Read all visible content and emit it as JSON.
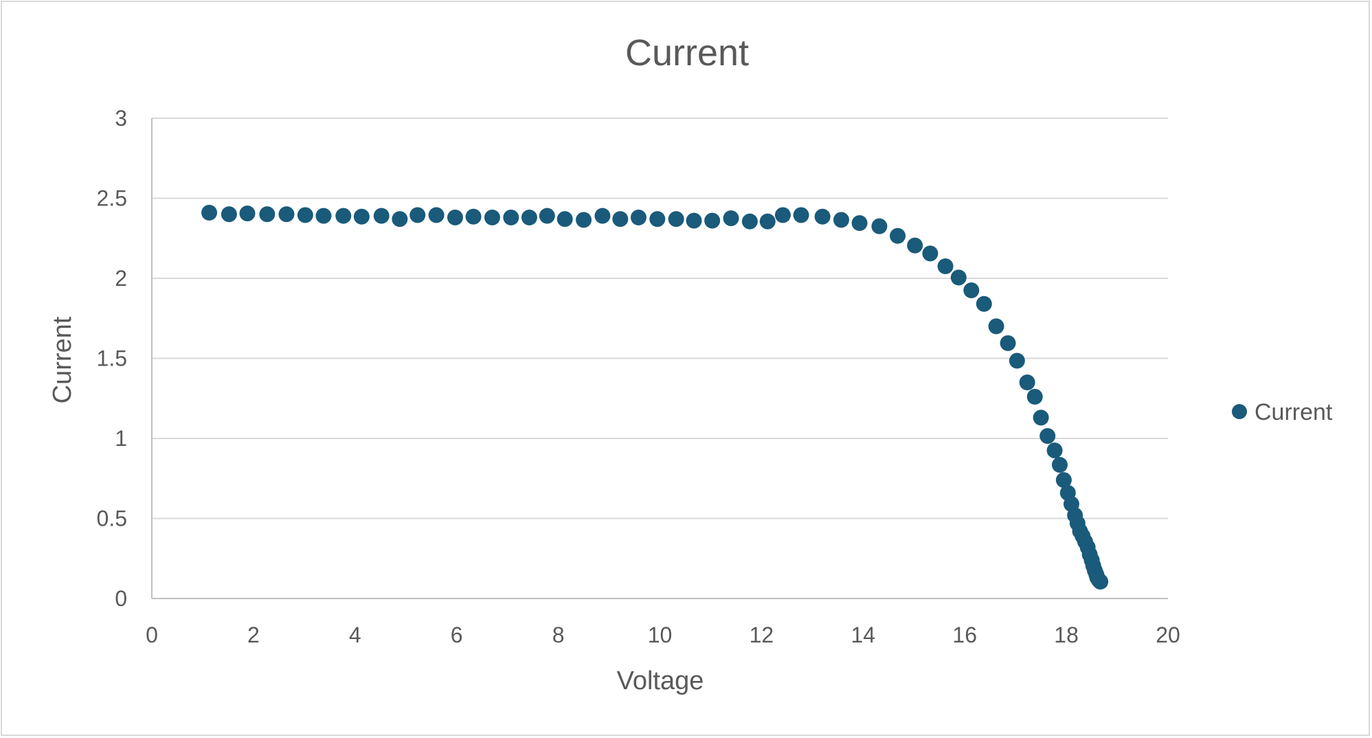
{
  "chart_data": {
    "type": "scatter",
    "title": "Current",
    "xlabel": "Voltage",
    "ylabel": "Current",
    "xlim": [
      0,
      20
    ],
    "ylim": [
      0,
      3
    ],
    "xticks": [
      "0",
      "2",
      "4",
      "6",
      "8",
      "10",
      "12",
      "14",
      "16",
      "18",
      "20"
    ],
    "yticks": [
      "0",
      "0.5",
      "1",
      "1.5",
      "2",
      "2.5",
      "3"
    ],
    "grid": "horizontal",
    "legend_position": "right",
    "colors": {
      "series": "#1a5a7a",
      "grid": "#d9d9d9",
      "axis": "#bfbfbf",
      "text": "#595959"
    },
    "series": [
      {
        "name": "Current",
        "x": [
          1.13,
          1.52,
          1.88,
          2.27,
          2.65,
          3.02,
          3.38,
          3.77,
          4.13,
          4.52,
          4.88,
          5.23,
          5.6,
          5.97,
          6.33,
          6.7,
          7.07,
          7.43,
          7.78,
          8.13,
          8.5,
          8.87,
          9.22,
          9.58,
          9.95,
          10.32,
          10.67,
          11.03,
          11.4,
          11.77,
          12.12,
          12.42,
          12.78,
          13.2,
          13.57,
          13.93,
          14.32,
          14.68,
          15.02,
          15.32,
          15.62,
          15.88,
          16.13,
          16.38,
          16.62,
          16.85,
          17.03,
          17.23,
          17.38,
          17.5,
          17.63,
          17.77,
          17.87,
          17.95,
          18.03,
          18.1,
          18.17,
          18.22,
          18.27,
          18.32,
          18.37,
          18.42,
          18.46,
          18.5,
          18.53,
          18.56,
          18.59,
          18.61,
          18.64,
          18.67
        ],
        "y": [
          2.41,
          2.4,
          2.405,
          2.4,
          2.4,
          2.395,
          2.39,
          2.39,
          2.385,
          2.39,
          2.37,
          2.395,
          2.395,
          2.38,
          2.385,
          2.38,
          2.38,
          2.38,
          2.39,
          2.37,
          2.365,
          2.39,
          2.37,
          2.38,
          2.37,
          2.37,
          2.36,
          2.36,
          2.375,
          2.355,
          2.355,
          2.395,
          2.395,
          2.385,
          2.365,
          2.345,
          2.325,
          2.265,
          2.205,
          2.155,
          2.075,
          2.005,
          1.925,
          1.84,
          1.7,
          1.595,
          1.485,
          1.35,
          1.26,
          1.13,
          1.015,
          0.925,
          0.835,
          0.74,
          0.66,
          0.59,
          0.52,
          0.47,
          0.42,
          0.39,
          0.355,
          0.32,
          0.275,
          0.24,
          0.205,
          0.175,
          0.15,
          0.13,
          0.115,
          0.105
        ]
      }
    ]
  }
}
